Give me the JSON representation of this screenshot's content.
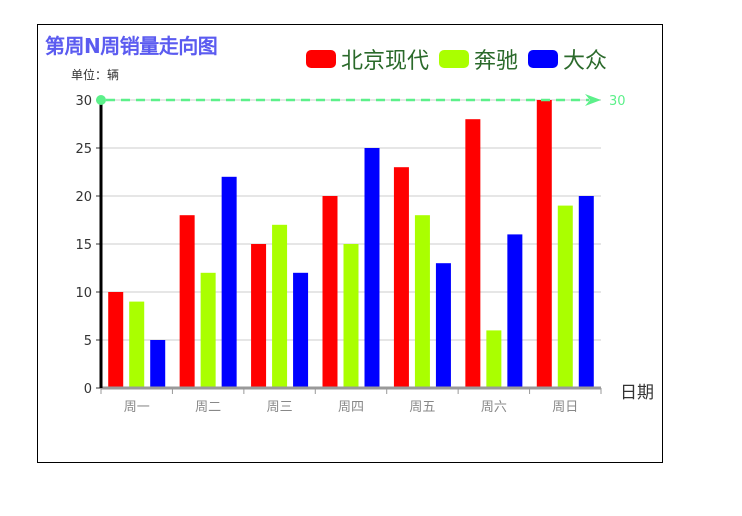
{
  "chart_data": {
    "type": "bar",
    "title": "第周N周销量走向图",
    "unit_label": "单位：辆",
    "xlabel": "日期",
    "ylabel": "",
    "categories": [
      "周一",
      "周二",
      "周三",
      "周四",
      "周五",
      "周六",
      "周日"
    ],
    "ylim": [
      0,
      30
    ],
    "yticks": [
      0,
      5,
      10,
      15,
      20,
      25,
      30
    ],
    "grid": true,
    "legend_position": "top-right",
    "series": [
      {
        "name": "北京现代",
        "color": "#ff0000",
        "values": [
          10,
          18,
          15,
          20,
          23,
          28,
          30
        ]
      },
      {
        "name": "奔驰",
        "color": "#aaff00",
        "values": [
          9,
          12,
          17,
          15,
          18,
          6,
          19
        ]
      },
      {
        "name": "大众",
        "color": "#0000ff",
        "values": [
          5,
          22,
          12,
          25,
          13,
          16,
          20
        ]
      }
    ],
    "markline": {
      "value": 30,
      "label": "30",
      "color": "#5cf08a"
    }
  }
}
